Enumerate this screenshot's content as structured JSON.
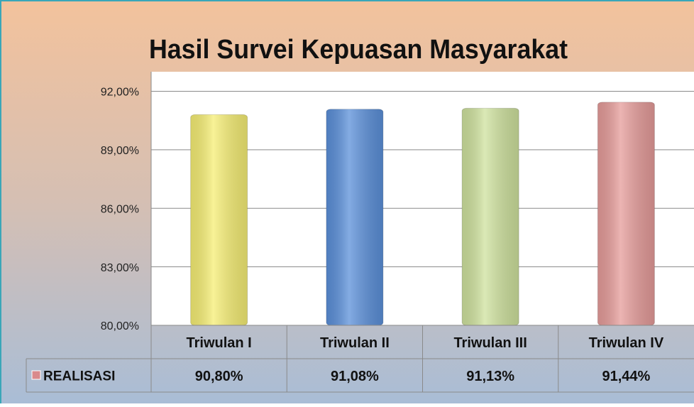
{
  "chart_data": {
    "type": "bar",
    "title": "Hasil Survei Kepuasan Masyarakat",
    "categories": [
      "Triwulan I",
      "Triwulan II",
      "Triwulan III",
      "Triwulan IV"
    ],
    "series": [
      {
        "name": "REALISASI",
        "colors": [
          "#f6ee74",
          "#5b90da",
          "#cfe29e",
          "#e69c9a"
        ],
        "legend_color": "#d98a8c",
        "values": [
          90.8,
          91.08,
          91.13,
          91.44
        ],
        "value_labels": [
          "90,80%",
          "91,08%",
          "91,13%",
          "91,44%"
        ]
      }
    ],
    "ylim": [
      80,
      93
    ],
    "yticks": [
      {
        "value": 80,
        "label": "80,00%"
      },
      {
        "value": 83,
        "label": "83,00%"
      },
      {
        "value": 86,
        "label": "86,00%"
      },
      {
        "value": 89,
        "label": "89,00%"
      },
      {
        "value": 92,
        "label": "92,00%"
      }
    ],
    "grid": true
  }
}
